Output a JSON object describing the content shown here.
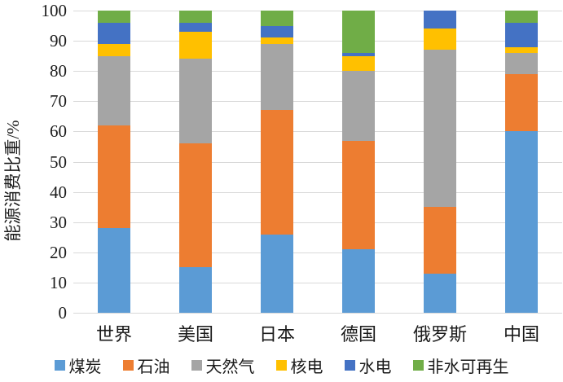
{
  "chart_data": {
    "type": "bar",
    "stacked": true,
    "title": "",
    "xlabel": "",
    "ylabel": "能源消费比重/%",
    "ylim": [
      0,
      100
    ],
    "yticks": [
      0,
      10,
      20,
      30,
      40,
      50,
      60,
      70,
      80,
      90,
      100
    ],
    "grid": true,
    "legend_position": "bottom",
    "categories": [
      "世界",
      "美国",
      "日本",
      "德国",
      "俄罗斯",
      "中国"
    ],
    "series": [
      {
        "name": "煤炭",
        "color": "#5B9BD5",
        "values": [
          28,
          15,
          26,
          21,
          13,
          60
        ]
      },
      {
        "name": "石油",
        "color": "#ED7D31",
        "values": [
          34,
          41,
          41,
          36,
          22,
          19
        ]
      },
      {
        "name": "天然气",
        "color": "#A5A5A5",
        "values": [
          23,
          28,
          22,
          23,
          52,
          7
        ]
      },
      {
        "name": "核电",
        "color": "#FFC000",
        "values": [
          4,
          9,
          2,
          5,
          7,
          2
        ]
      },
      {
        "name": "水电",
        "color": "#4472C4",
        "values": [
          7,
          3,
          4,
          1,
          6,
          8
        ]
      },
      {
        "name": "非水可再生",
        "color": "#70AD47",
        "values": [
          4,
          4,
          5,
          14,
          0,
          4
        ]
      }
    ]
  },
  "colors": {
    "gridline": "#d9d9d9",
    "axis_text": "#1a1a1a"
  }
}
